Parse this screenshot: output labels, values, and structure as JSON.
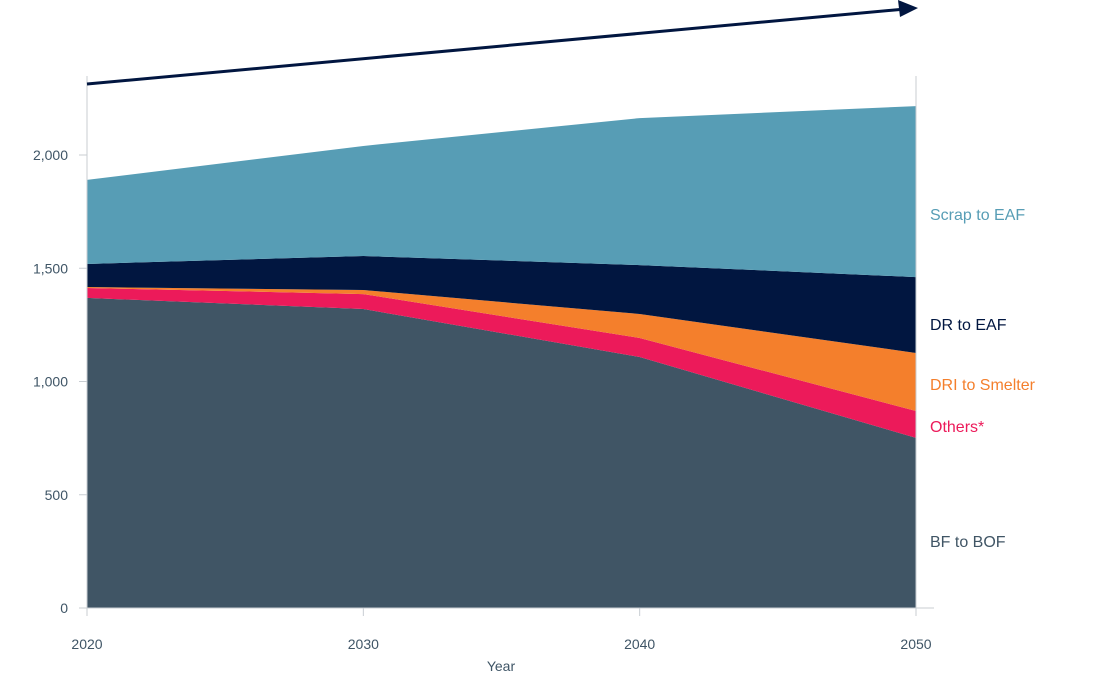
{
  "chart_data": {
    "type": "area",
    "stacked": true,
    "title": "",
    "xlabel": "Year",
    "ylabel": "",
    "x": [
      2020,
      2030,
      2040,
      2050
    ],
    "x_tick_labels": [
      "2020",
      "2030",
      "2040",
      "2050"
    ],
    "ylim": [
      0,
      2350
    ],
    "y_ticks": [
      0,
      500,
      1000,
      1500,
      2000
    ],
    "y_tick_labels": [
      "0",
      "500",
      "1,000",
      "1,500",
      "2,000"
    ],
    "series": [
      {
        "name": "BF to BOF",
        "color": "#405565",
        "values": [
          1369,
          1320,
          1108,
          751
        ]
      },
      {
        "name": "Others*",
        "color": "#ec1a5a",
        "values": [
          44,
          66,
          84,
          119
        ]
      },
      {
        "name": "DRI to Smelter",
        "color": "#f47f2c",
        "values": [
          4,
          18,
          106,
          256
        ]
      },
      {
        "name": "DR to EAF",
        "color": "#011640",
        "values": [
          102,
          150,
          216,
          335
        ]
      },
      {
        "name": "Scrap to EAF",
        "color": "#579db5",
        "values": [
          371,
          486,
          649,
          755
        ]
      }
    ],
    "legend_placement": "right, labels at series end",
    "annotations": [
      "trend arrow rising from 2020 to 2050"
    ]
  }
}
